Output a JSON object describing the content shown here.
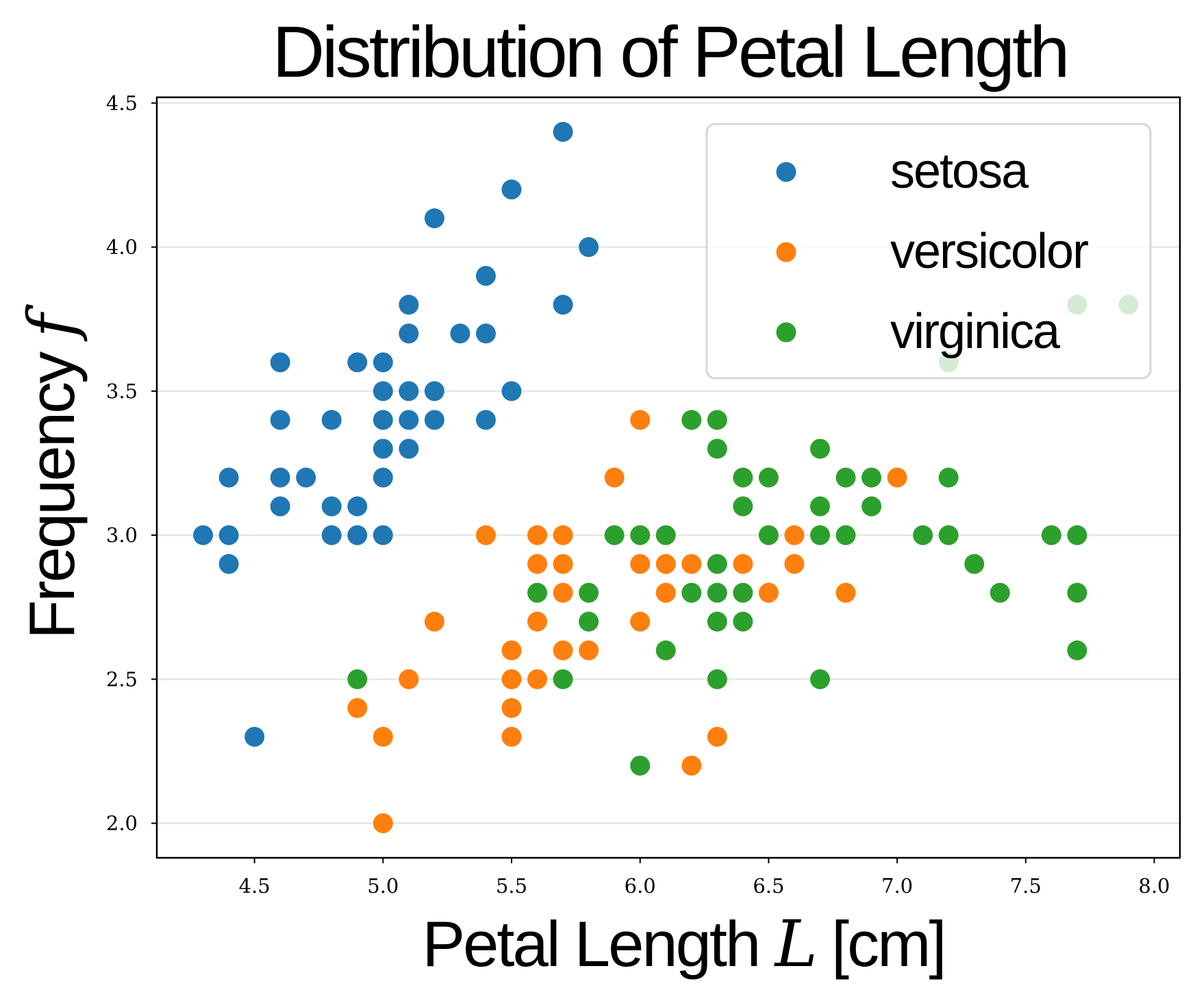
{
  "chart_data": {
    "type": "scatter",
    "title": "Distribution of Petal Length",
    "xlabel": "Petal Length",
    "xlabel_symbol": "L",
    "xlabel_unit": "[cm]",
    "ylabel": "Frequency",
    "ylabel_symbol": "f",
    "xlim": [
      4.12,
      8.1
    ],
    "ylim": [
      1.88,
      4.52
    ],
    "xticks": [
      "4.5",
      "5.0",
      "5.5",
      "6.0",
      "6.5",
      "7.0",
      "7.5",
      "8.0"
    ],
    "yticks": [
      "2.0",
      "2.5",
      "3.0",
      "3.5",
      "4.0",
      "4.5"
    ],
    "grid": "horizontal",
    "legend_position": "top-right",
    "series": [
      {
        "name": "setosa",
        "color": "#1f77b4",
        "points": [
          [
            4.3,
            3.0
          ],
          [
            4.4,
            3.0
          ],
          [
            4.4,
            3.2
          ],
          [
            4.4,
            2.9
          ],
          [
            4.5,
            2.3
          ],
          [
            4.6,
            3.6
          ],
          [
            4.6,
            3.4
          ],
          [
            4.6,
            3.2
          ],
          [
            4.6,
            3.1
          ],
          [
            4.7,
            3.2
          ],
          [
            4.8,
            3.4
          ],
          [
            4.8,
            3.1
          ],
          [
            4.8,
            3.0
          ],
          [
            4.9,
            3.6
          ],
          [
            4.9,
            3.1
          ],
          [
            4.9,
            3.0
          ],
          [
            5.0,
            3.6
          ],
          [
            5.0,
            3.5
          ],
          [
            5.0,
            3.4
          ],
          [
            5.0,
            3.3
          ],
          [
            5.0,
            3.2
          ],
          [
            5.0,
            3.0
          ],
          [
            5.1,
            3.8
          ],
          [
            5.1,
            3.7
          ],
          [
            5.1,
            3.5
          ],
          [
            5.1,
            3.4
          ],
          [
            5.1,
            3.3
          ],
          [
            5.2,
            4.1
          ],
          [
            5.2,
            3.5
          ],
          [
            5.2,
            3.4
          ],
          [
            5.3,
            3.7
          ],
          [
            5.4,
            3.9
          ],
          [
            5.4,
            3.7
          ],
          [
            5.4,
            3.4
          ],
          [
            5.5,
            4.2
          ],
          [
            5.5,
            3.5
          ],
          [
            5.7,
            4.4
          ],
          [
            5.7,
            3.8
          ],
          [
            5.8,
            4.0
          ]
        ]
      },
      {
        "name": "versicolor",
        "color": "#ff7f0e",
        "points": [
          [
            4.9,
            2.4
          ],
          [
            5.0,
            2.3
          ],
          [
            5.0,
            2.0
          ],
          [
            5.1,
            2.5
          ],
          [
            5.2,
            2.7
          ],
          [
            5.4,
            3.0
          ],
          [
            5.5,
            2.6
          ],
          [
            5.5,
            2.5
          ],
          [
            5.5,
            2.4
          ],
          [
            5.5,
            2.3
          ],
          [
            5.6,
            3.0
          ],
          [
            5.6,
            2.9
          ],
          [
            5.6,
            2.7
          ],
          [
            5.6,
            2.5
          ],
          [
            5.7,
            3.0
          ],
          [
            5.7,
            2.9
          ],
          [
            5.7,
            2.8
          ],
          [
            5.7,
            2.6
          ],
          [
            5.8,
            2.6
          ],
          [
            5.9,
            3.2
          ],
          [
            6.0,
            3.4
          ],
          [
            6.0,
            2.9
          ],
          [
            6.0,
            2.7
          ],
          [
            6.1,
            2.9
          ],
          [
            6.1,
            2.8
          ],
          [
            6.2,
            2.9
          ],
          [
            6.2,
            2.2
          ],
          [
            6.3,
            2.3
          ],
          [
            6.4,
            2.9
          ],
          [
            6.5,
            2.8
          ],
          [
            6.6,
            3.0
          ],
          [
            6.6,
            2.9
          ],
          [
            6.8,
            2.8
          ],
          [
            7.0,
            3.2
          ]
        ]
      },
      {
        "name": "virginica",
        "color": "#2ca02c",
        "points": [
          [
            4.9,
            2.5
          ],
          [
            5.6,
            2.8
          ],
          [
            5.7,
            2.5
          ],
          [
            5.8,
            2.8
          ],
          [
            5.8,
            2.7
          ],
          [
            5.9,
            3.0
          ],
          [
            6.0,
            3.0
          ],
          [
            6.0,
            2.2
          ],
          [
            6.1,
            3.0
          ],
          [
            6.1,
            2.6
          ],
          [
            6.2,
            3.4
          ],
          [
            6.2,
            2.8
          ],
          [
            6.3,
            3.4
          ],
          [
            6.3,
            3.3
          ],
          [
            6.3,
            2.9
          ],
          [
            6.3,
            2.8
          ],
          [
            6.3,
            2.7
          ],
          [
            6.3,
            2.5
          ],
          [
            6.4,
            3.2
          ],
          [
            6.4,
            3.1
          ],
          [
            6.4,
            2.8
          ],
          [
            6.4,
            2.7
          ],
          [
            6.5,
            3.2
          ],
          [
            6.5,
            3.0
          ],
          [
            6.7,
            3.3
          ],
          [
            6.7,
            3.1
          ],
          [
            6.7,
            3.0
          ],
          [
            6.7,
            2.5
          ],
          [
            6.8,
            3.2
          ],
          [
            6.8,
            3.0
          ],
          [
            6.9,
            3.2
          ],
          [
            6.9,
            3.1
          ],
          [
            7.1,
            3.0
          ],
          [
            7.2,
            3.6
          ],
          [
            7.2,
            3.2
          ],
          [
            7.2,
            3.0
          ],
          [
            7.3,
            2.9
          ],
          [
            7.4,
            2.8
          ],
          [
            7.6,
            3.0
          ],
          [
            7.7,
            3.8
          ],
          [
            7.7,
            3.0
          ],
          [
            7.7,
            2.8
          ],
          [
            7.7,
            2.6
          ],
          [
            7.9,
            3.8
          ]
        ]
      }
    ]
  }
}
